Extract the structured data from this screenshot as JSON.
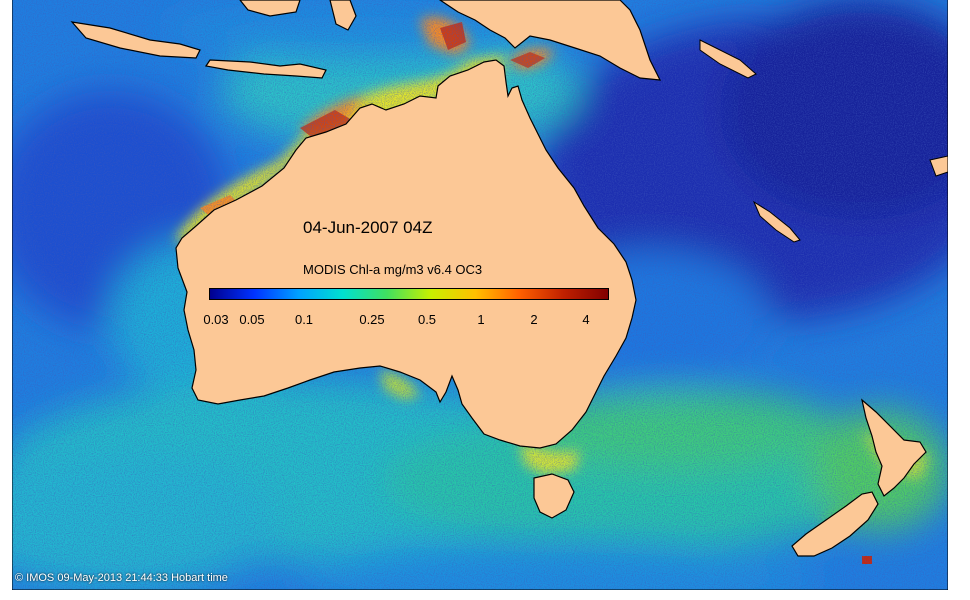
{
  "map": {
    "date_label": "04-Jun-2007 04Z",
    "colorbar": {
      "title": "MODIS Chl-a mg/m3 v6.4 OC3",
      "ticks": [
        "0.03",
        "0.05",
        "0.1",
        "0.25",
        "0.5",
        "1",
        "2",
        "4"
      ],
      "colors": [
        "#00008f",
        "#0033ff",
        "#00a0ff",
        "#00e0d0",
        "#40e060",
        "#c8f000",
        "#ffc000",
        "#ff6000",
        "#c02000",
        "#800000"
      ]
    },
    "credit": "© IMOS 09-May-2013 21:44:33 Hobart time",
    "land_color": "#fcc896",
    "ocean_colors": {
      "deep_blue": "#1a3cc8",
      "blue": "#1e78e6",
      "cyan": "#20b4dc",
      "teal": "#20c8b4",
      "green": "#48d25a",
      "yellow": "#e6e628",
      "orange": "#ff8c1e",
      "red": "#c8280a"
    }
  }
}
